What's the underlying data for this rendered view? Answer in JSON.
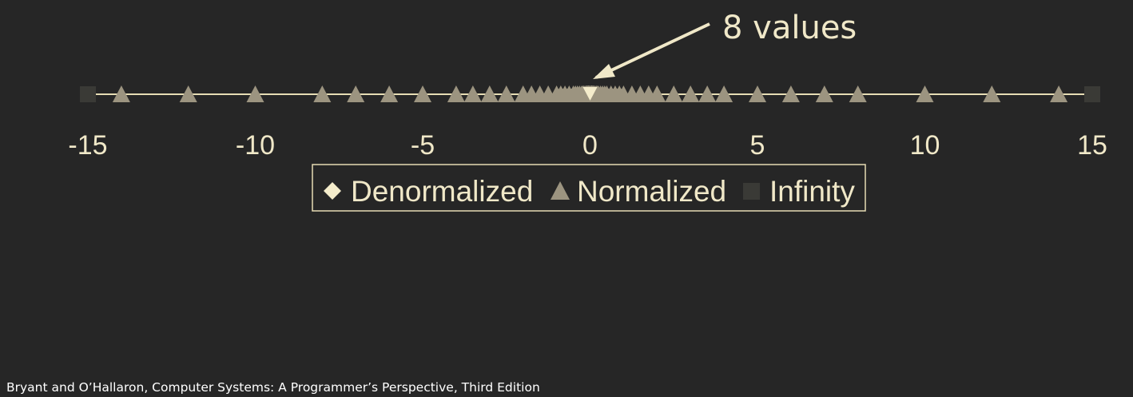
{
  "chart_data": {
    "type": "scatter",
    "xlim": [
      -15,
      15
    ],
    "x_ticks": [
      "-15",
      "-10",
      "-5",
      "0",
      "5",
      "10",
      "15"
    ],
    "grid": false,
    "legend_placement": "bottom-center",
    "colors": {
      "background": "#262626",
      "axis": "#e6dcb4",
      "text": "#f0e8c8",
      "denormalized": "#f4eccb",
      "normalized": "#9c9480",
      "infinity": "#3a3a36"
    },
    "series": [
      {
        "name": "Denormalized",
        "marker": "diamond",
        "values": [
          -0.875,
          -0.75,
          -0.625,
          -0.5,
          -0.375,
          -0.25,
          -0.125,
          0,
          0,
          0.125,
          0.25,
          0.375,
          0.5,
          0.625,
          0.75,
          0.875
        ]
      },
      {
        "name": "Normalized",
        "marker": "triangle",
        "values": [
          -14,
          -12,
          -10,
          -8,
          -7,
          -6,
          -5,
          -4,
          -3.5,
          -3,
          -2.5,
          -2,
          -1.75,
          -1.5,
          -1.25,
          -1,
          -0.875,
          -0.75,
          -0.625,
          -0.5,
          -0.4375,
          -0.375,
          -0.3125,
          -0.25,
          -0.21875,
          -0.1875,
          -0.15625,
          -0.125,
          -0.109375,
          -0.09375,
          -0.078125,
          -0.0625,
          -0.0546875,
          -0.046875,
          -0.0390625,
          -0.03125,
          -0.02734375,
          -0.0234375,
          -0.01953125,
          -0.015625,
          0.015625,
          0.01953125,
          0.0234375,
          0.02734375,
          0.03125,
          0.0390625,
          0.046875,
          0.0546875,
          0.0625,
          0.078125,
          0.09375,
          0.109375,
          0.125,
          0.15625,
          0.1875,
          0.21875,
          0.25,
          0.3125,
          0.375,
          0.4375,
          0.5,
          0.625,
          0.75,
          0.875,
          1,
          1.25,
          1.5,
          1.75,
          2,
          2.5,
          3,
          3.5,
          4,
          5,
          6,
          7,
          8,
          10,
          12,
          14
        ]
      },
      {
        "name": "Infinity",
        "marker": "square",
        "values": [
          -15,
          15
        ]
      }
    ],
    "annotations": [
      {
        "text": "8 values",
        "points_to_x": 0
      }
    ]
  },
  "footer": {
    "citation": "Bryant and O’Hallaron, Computer Systems: A Programmer’s Perspective, Third Edition"
  }
}
